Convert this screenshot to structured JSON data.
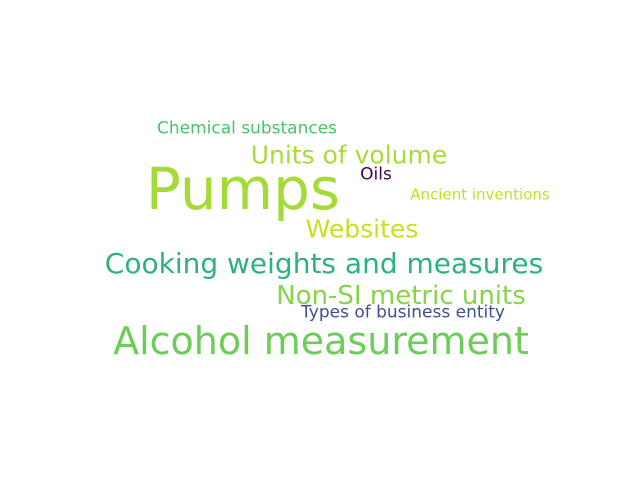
{
  "words": [
    {
      "text": "Pumps",
      "color": "#a5db36"
    },
    {
      "text": "Alcohol measurement",
      "color": "#6ccd5a"
    },
    {
      "text": "Cooking weights and measures",
      "color": "#2db27d"
    },
    {
      "text": "Non-SI metric units",
      "color": "#86d549"
    },
    {
      "text": "Units of volume",
      "color": "#a8db34"
    },
    {
      "text": "Websites",
      "color": "#c8e020"
    },
    {
      "text": "Chemical substances",
      "color": "#4ac16d"
    },
    {
      "text": "Types of business entity",
      "color": "#3b528b"
    },
    {
      "text": "Ancient inventions",
      "color": "#c2df23"
    },
    {
      "text": "Oils",
      "color": "#440154"
    }
  ]
}
